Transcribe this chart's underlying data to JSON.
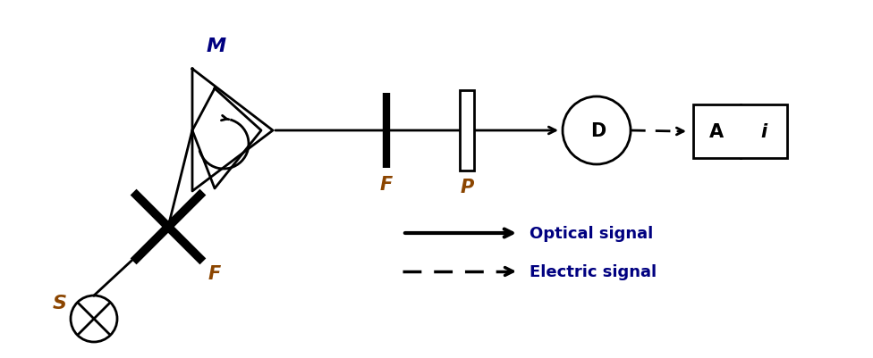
{
  "bg_color": "#ffffff",
  "label_color_M": "#000080",
  "label_color_F": "#8B4500",
  "label_color_S": "#8B4500",
  "label_color_optical": "#000080",
  "label_color_electric": "#000080",
  "figsize": [
    9.76,
    4.02
  ],
  "dpi": 100,
  "xlim": [
    0,
    976
  ],
  "ylim": [
    0,
    402
  ],
  "optical_signal_text": "Optical signal",
  "electric_signal_text": "Electric signal"
}
